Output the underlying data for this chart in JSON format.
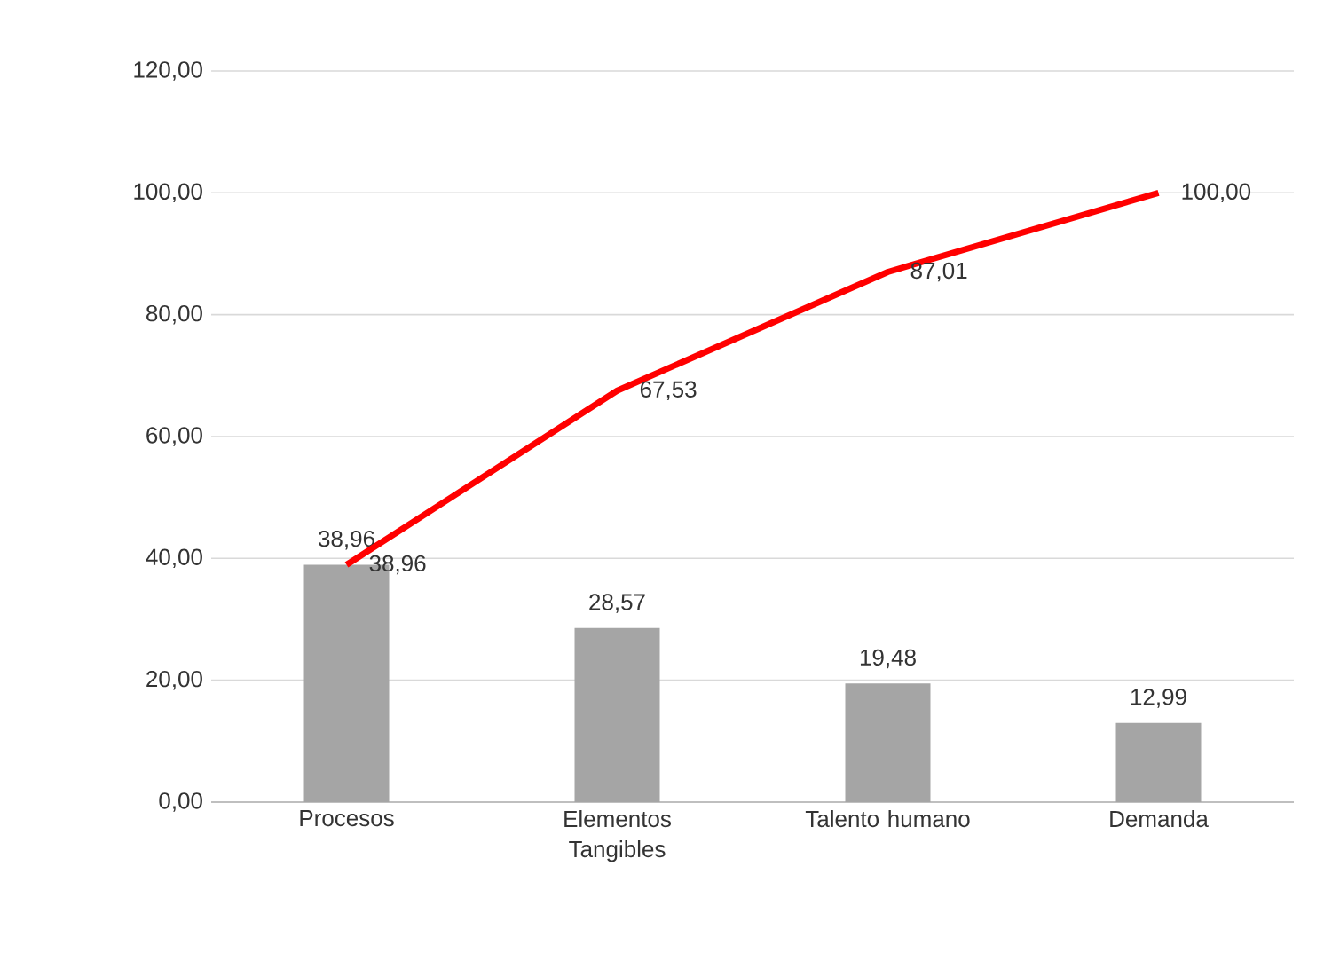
{
  "chart_data": {
    "type": "bar",
    "categories": [
      "Procesos",
      "Elementos Tangibles",
      "Talento humano",
      "Demanda"
    ],
    "series": [
      {
        "color": "#a5a5a5",
        "values": [
          38.96,
          28.57,
          19.48,
          12.99
        ],
        "value_labels": [
          "38,96",
          "28,57",
          "19,48",
          "12,99"
        ]
      },
      {
        "type": "line",
        "color": "#ff0000",
        "values": [
          38.96,
          67.53,
          87.01,
          100.0
        ],
        "value_labels": [
          "38,96",
          "67,53",
          "87,01",
          "100,00"
        ]
      }
    ],
    "ylim": [
      0,
      120
    ],
    "yticks": [
      {
        "value": 0,
        "label": "0,00"
      },
      {
        "value": 20,
        "label": "20,00"
      },
      {
        "value": 40,
        "label": "40,00"
      },
      {
        "value": 60,
        "label": "60,00"
      },
      {
        "value": 80,
        "label": "80,00"
      },
      {
        "value": 100,
        "label": "100,00"
      },
      {
        "value": 120,
        "label": "120,00"
      }
    ],
    "grid": "y"
  }
}
